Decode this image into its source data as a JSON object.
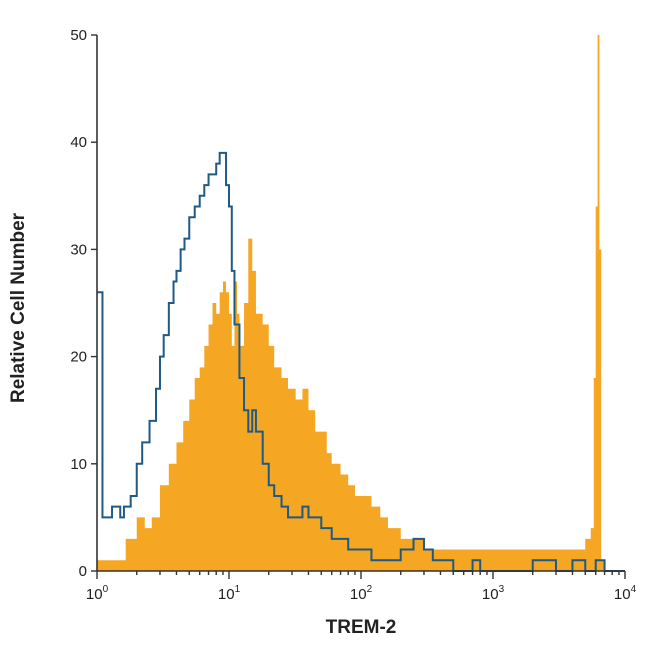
{
  "chart_data": {
    "type": "histogram",
    "xlabel": "TREM-2",
    "ylabel": "Relative Cell Number",
    "xscale": "log",
    "xlim": [
      1,
      10000
    ],
    "ylim": [
      0,
      50
    ],
    "x_ticks": [
      {
        "value": 1,
        "base": "10",
        "exp": "0"
      },
      {
        "value": 10,
        "base": "10",
        "exp": "1"
      },
      {
        "value": 100,
        "base": "10",
        "exp": "2"
      },
      {
        "value": 1000,
        "base": "10",
        "exp": "3"
      },
      {
        "value": 10000,
        "base": "10",
        "exp": "4"
      }
    ],
    "y_ticks": [
      0,
      10,
      20,
      30,
      40,
      50
    ],
    "series": [
      {
        "style": "filled",
        "color": "#F5A623",
        "points": [
          [
            1.0,
            1
          ],
          [
            1.5,
            1
          ],
          [
            1.65,
            3
          ],
          [
            1.8,
            3
          ],
          [
            2.0,
            5
          ],
          [
            2.3,
            4
          ],
          [
            2.6,
            5
          ],
          [
            3.0,
            8
          ],
          [
            3.5,
            10
          ],
          [
            4.0,
            12
          ],
          [
            4.5,
            14
          ],
          [
            5.0,
            16
          ],
          [
            5.5,
            18
          ],
          [
            6.0,
            19
          ],
          [
            6.5,
            21
          ],
          [
            7.0,
            23
          ],
          [
            7.5,
            25
          ],
          [
            8.0,
            24
          ],
          [
            8.5,
            26
          ],
          [
            9.0,
            27
          ],
          [
            9.5,
            26
          ],
          [
            10.0,
            24
          ],
          [
            10.5,
            21
          ],
          [
            11.0,
            27
          ],
          [
            11.5,
            24
          ],
          [
            12.0,
            21
          ],
          [
            13.0,
            25
          ],
          [
            14.0,
            31
          ],
          [
            15.0,
            28
          ],
          [
            16.0,
            24
          ],
          [
            18.0,
            23
          ],
          [
            20.0,
            21
          ],
          [
            22.0,
            19
          ],
          [
            25.0,
            18
          ],
          [
            28.0,
            17
          ],
          [
            32.0,
            16
          ],
          [
            36.0,
            17
          ],
          [
            40.0,
            15
          ],
          [
            45.0,
            13
          ],
          [
            50.0,
            13
          ],
          [
            55.0,
            11
          ],
          [
            60.0,
            10
          ],
          [
            70.0,
            9
          ],
          [
            80.0,
            8
          ],
          [
            90.0,
            7
          ],
          [
            100.0,
            7
          ],
          [
            120.0,
            6
          ],
          [
            140.0,
            5
          ],
          [
            160.0,
            4
          ],
          [
            200.0,
            3
          ],
          [
            250.0,
            3
          ],
          [
            300.0,
            2
          ],
          [
            400.0,
            2
          ],
          [
            500.0,
            2
          ],
          [
            600.0,
            2
          ],
          [
            800.0,
            2
          ],
          [
            1000.0,
            2
          ],
          [
            1500.0,
            2
          ],
          [
            2000.0,
            2
          ],
          [
            2500.0,
            2
          ],
          [
            3000.0,
            2
          ],
          [
            3500.0,
            2
          ],
          [
            4000.0,
            2
          ],
          [
            4500.0,
            2
          ],
          [
            5000.0,
            3
          ],
          [
            5500.0,
            4
          ],
          [
            5800.0,
            18
          ],
          [
            6000.0,
            34
          ],
          [
            6200.0,
            50
          ],
          [
            6400.0,
            30
          ],
          [
            6600.0,
            1
          ],
          [
            7000.0,
            0
          ],
          [
            10000.0,
            0
          ]
        ]
      },
      {
        "style": "outline",
        "color": "#1F5A85",
        "points": [
          [
            1.0,
            26
          ],
          [
            1.05,
            26
          ],
          [
            1.1,
            5
          ],
          [
            1.2,
            5
          ],
          [
            1.3,
            6
          ],
          [
            1.4,
            6
          ],
          [
            1.5,
            5
          ],
          [
            1.6,
            6
          ],
          [
            1.7,
            6
          ],
          [
            1.8,
            7
          ],
          [
            2.0,
            10
          ],
          [
            2.2,
            12
          ],
          [
            2.5,
            14
          ],
          [
            2.8,
            17
          ],
          [
            3.0,
            20
          ],
          [
            3.2,
            22
          ],
          [
            3.5,
            25
          ],
          [
            3.8,
            27
          ],
          [
            4.0,
            28
          ],
          [
            4.3,
            30
          ],
          [
            4.6,
            31
          ],
          [
            5.0,
            33
          ],
          [
            5.5,
            34
          ],
          [
            6.0,
            35
          ],
          [
            6.5,
            36
          ],
          [
            7.0,
            37
          ],
          [
            7.5,
            37
          ],
          [
            8.0,
            38
          ],
          [
            8.5,
            39
          ],
          [
            9.0,
            39
          ],
          [
            9.5,
            36
          ],
          [
            10.0,
            34
          ],
          [
            10.5,
            28
          ],
          [
            11.0,
            23
          ],
          [
            12.0,
            18
          ],
          [
            13.0,
            15
          ],
          [
            14.0,
            13
          ],
          [
            15.0,
            15
          ],
          [
            16.0,
            13
          ],
          [
            18.0,
            10
          ],
          [
            20.0,
            8
          ],
          [
            22.0,
            7
          ],
          [
            25.0,
            6
          ],
          [
            28.0,
            5
          ],
          [
            32.0,
            5
          ],
          [
            36.0,
            6
          ],
          [
            40.0,
            5
          ],
          [
            45.0,
            5
          ],
          [
            50.0,
            4
          ],
          [
            60.0,
            3
          ],
          [
            70.0,
            3
          ],
          [
            80.0,
            2
          ],
          [
            100.0,
            2
          ],
          [
            120.0,
            1
          ],
          [
            150.0,
            1
          ],
          [
            200.0,
            2
          ],
          [
            250.0,
            3
          ],
          [
            300.0,
            2
          ],
          [
            350.0,
            1
          ],
          [
            400.0,
            1
          ],
          [
            500.0,
            0
          ],
          [
            600.0,
            0
          ],
          [
            700.0,
            1
          ],
          [
            800.0,
            0
          ],
          [
            1000.0,
            0
          ],
          [
            1500.0,
            0
          ],
          [
            2000.0,
            1
          ],
          [
            3000.0,
            0
          ],
          [
            4000.0,
            1
          ],
          [
            5000.0,
            0
          ],
          [
            6000.0,
            1
          ],
          [
            6500.0,
            1
          ],
          [
            7000.0,
            0
          ],
          [
            10000.0,
            0
          ]
        ]
      }
    ]
  }
}
